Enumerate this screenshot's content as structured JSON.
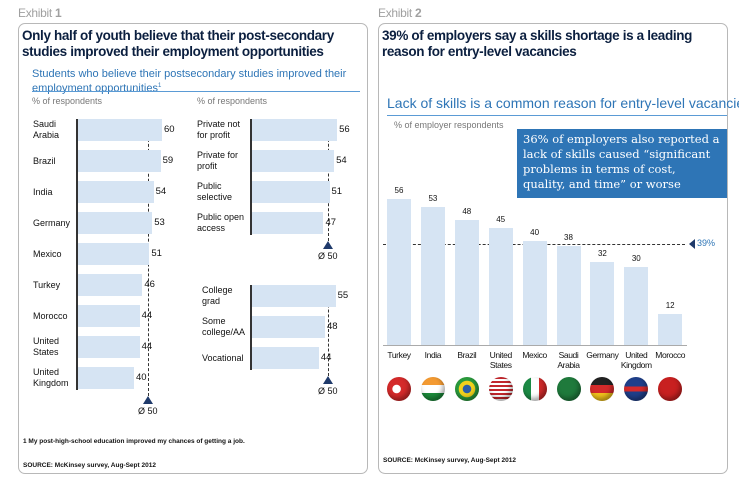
{
  "exhibit1": {
    "label": "Exhibit",
    "number": "1",
    "title": "Only half of youth believe that their post-secondary studies improved their employment opportunities",
    "subtitle": "Students who believe their postsecondary studies improved their employment opportunities",
    "footnote_mark": "1",
    "unit_left": "% of respondents",
    "unit_right": "% of respondents",
    "footnote": "1 My post-high-school education improved my chances of getting a job.",
    "source": "SOURCE: McKinsey survey, Aug-Sept 2012"
  },
  "exhibit2": {
    "label": "Exhibit",
    "number": "2",
    "title": "39% of employers say a skills shortage is a leading reason for entry-level vacancies",
    "subtitle": "Lack of skills is a common reason for entry-level vacancies",
    "unit": "% of employer respondents",
    "callout": "36% of employers  also reported a lack of skills caused “significant problems in terms of cost, quality, and time” or worse",
    "source": "SOURCE: McKinsey survey, Aug-Sept 2012"
  },
  "chart_data": [
    {
      "type": "bar",
      "orientation": "horizontal",
      "categories": [
        "Saudi Arabia",
        "Brazil",
        "India",
        "Germany",
        "Mexico",
        "Turkey",
        "Morocco",
        "United States",
        "United Kingdom"
      ],
      "values": [
        60,
        59,
        54,
        53,
        51,
        46,
        44,
        44,
        40
      ],
      "ylabel": "% of respondents",
      "average": 50,
      "average_label": "Ø 50"
    },
    {
      "type": "bar",
      "orientation": "horizontal",
      "categories": [
        "Private not for profit",
        "Private for profit",
        "Public selective",
        "Public open access"
      ],
      "values": [
        56,
        54,
        51,
        47
      ],
      "ylabel": "% of respondents",
      "average": 50,
      "average_label": "Ø 50"
    },
    {
      "type": "bar",
      "orientation": "horizontal",
      "categories": [
        "College grad",
        "Some college/AA",
        "Vocational"
      ],
      "values": [
        55,
        48,
        44
      ],
      "average": 50,
      "average_label": "Ø 50"
    },
    {
      "type": "bar",
      "orientation": "vertical",
      "categories": [
        "Turkey",
        "India",
        "Brazil",
        "United States",
        "Mexico",
        "Saudi Arabia",
        "Germany",
        "United Kingdom",
        "Morocco"
      ],
      "values": [
        56,
        53,
        48,
        45,
        40,
        38,
        32,
        30,
        12
      ],
      "ylabel": "% of employer respondents",
      "reference": 39,
      "reference_label": "39%",
      "flags": [
        "turkey-flag",
        "india-flag",
        "brazil-flag",
        "usa-flag",
        "mexico-flag",
        "saudi-flag",
        "germany-flag",
        "uk-flag",
        "morocco-flag"
      ]
    }
  ],
  "colors": {
    "bar": "#d6e4f3",
    "accent": "#2e75b6",
    "title": "#0b1f3f",
    "marker": "#1f3a6b"
  }
}
